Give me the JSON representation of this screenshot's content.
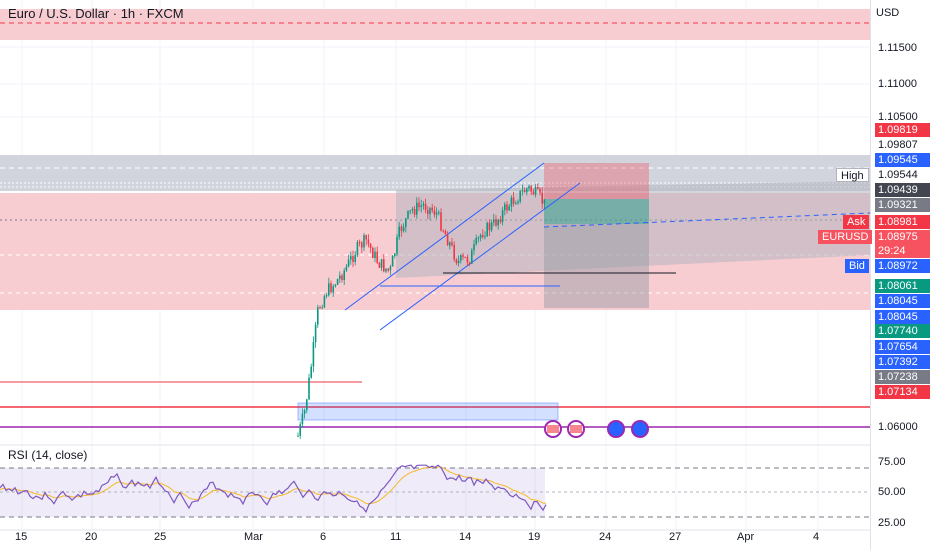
{
  "header": {
    "title": "Euro / U.S. Dollar · 1h · FXCM"
  },
  "currency": "USD",
  "rsi": {
    "title": "RSI (14, close)",
    "levels": [
      "75.00",
      "50.00",
      "25.00"
    ]
  },
  "price_axis": [
    "1.11500",
    "1.11000",
    "1.10500",
    "1.06000"
  ],
  "price_labels": [
    {
      "text": "1.09819",
      "color": "#f23645"
    },
    {
      "text": "1.09807",
      "color": "#ffffff",
      "fg": "#131722"
    },
    {
      "text": "1.09545",
      "color": "#2962ff"
    },
    {
      "text": "1.09544",
      "color": "#ffffff",
      "fg": "#131722"
    },
    {
      "text": "1.09439",
      "color": "#434651"
    },
    {
      "text": "1.09321",
      "color": "#787b86"
    },
    {
      "text": "1.08981",
      "color": "#f23645"
    },
    {
      "text": "1.08975",
      "color": "#f7525f"
    },
    {
      "text": "29:24",
      "color": "#f7525f"
    },
    {
      "text": "1.08972",
      "color": "#2962ff"
    },
    {
      "text": "1.08061",
      "color": "#089981"
    },
    {
      "text": "1.08045",
      "color": "#2962ff"
    },
    {
      "text": "1.08045",
      "color": "#2962ff"
    },
    {
      "text": "1.07740",
      "color": "#089981"
    },
    {
      "text": "1.07654",
      "color": "#2962ff"
    },
    {
      "text": "1.07392",
      "color": "#2962ff"
    },
    {
      "text": "1.07238",
      "color": "#787b86"
    },
    {
      "text": "1.07134",
      "color": "#f23645"
    }
  ],
  "tags": {
    "high": "High",
    "ask": "Ask",
    "symbol": "EURUSD",
    "bid": "Bid"
  },
  "time_axis": [
    "15",
    "20",
    "25",
    "Mar",
    "6",
    "11",
    "14",
    "19",
    "24",
    "27",
    "Apr",
    "4"
  ]
}
